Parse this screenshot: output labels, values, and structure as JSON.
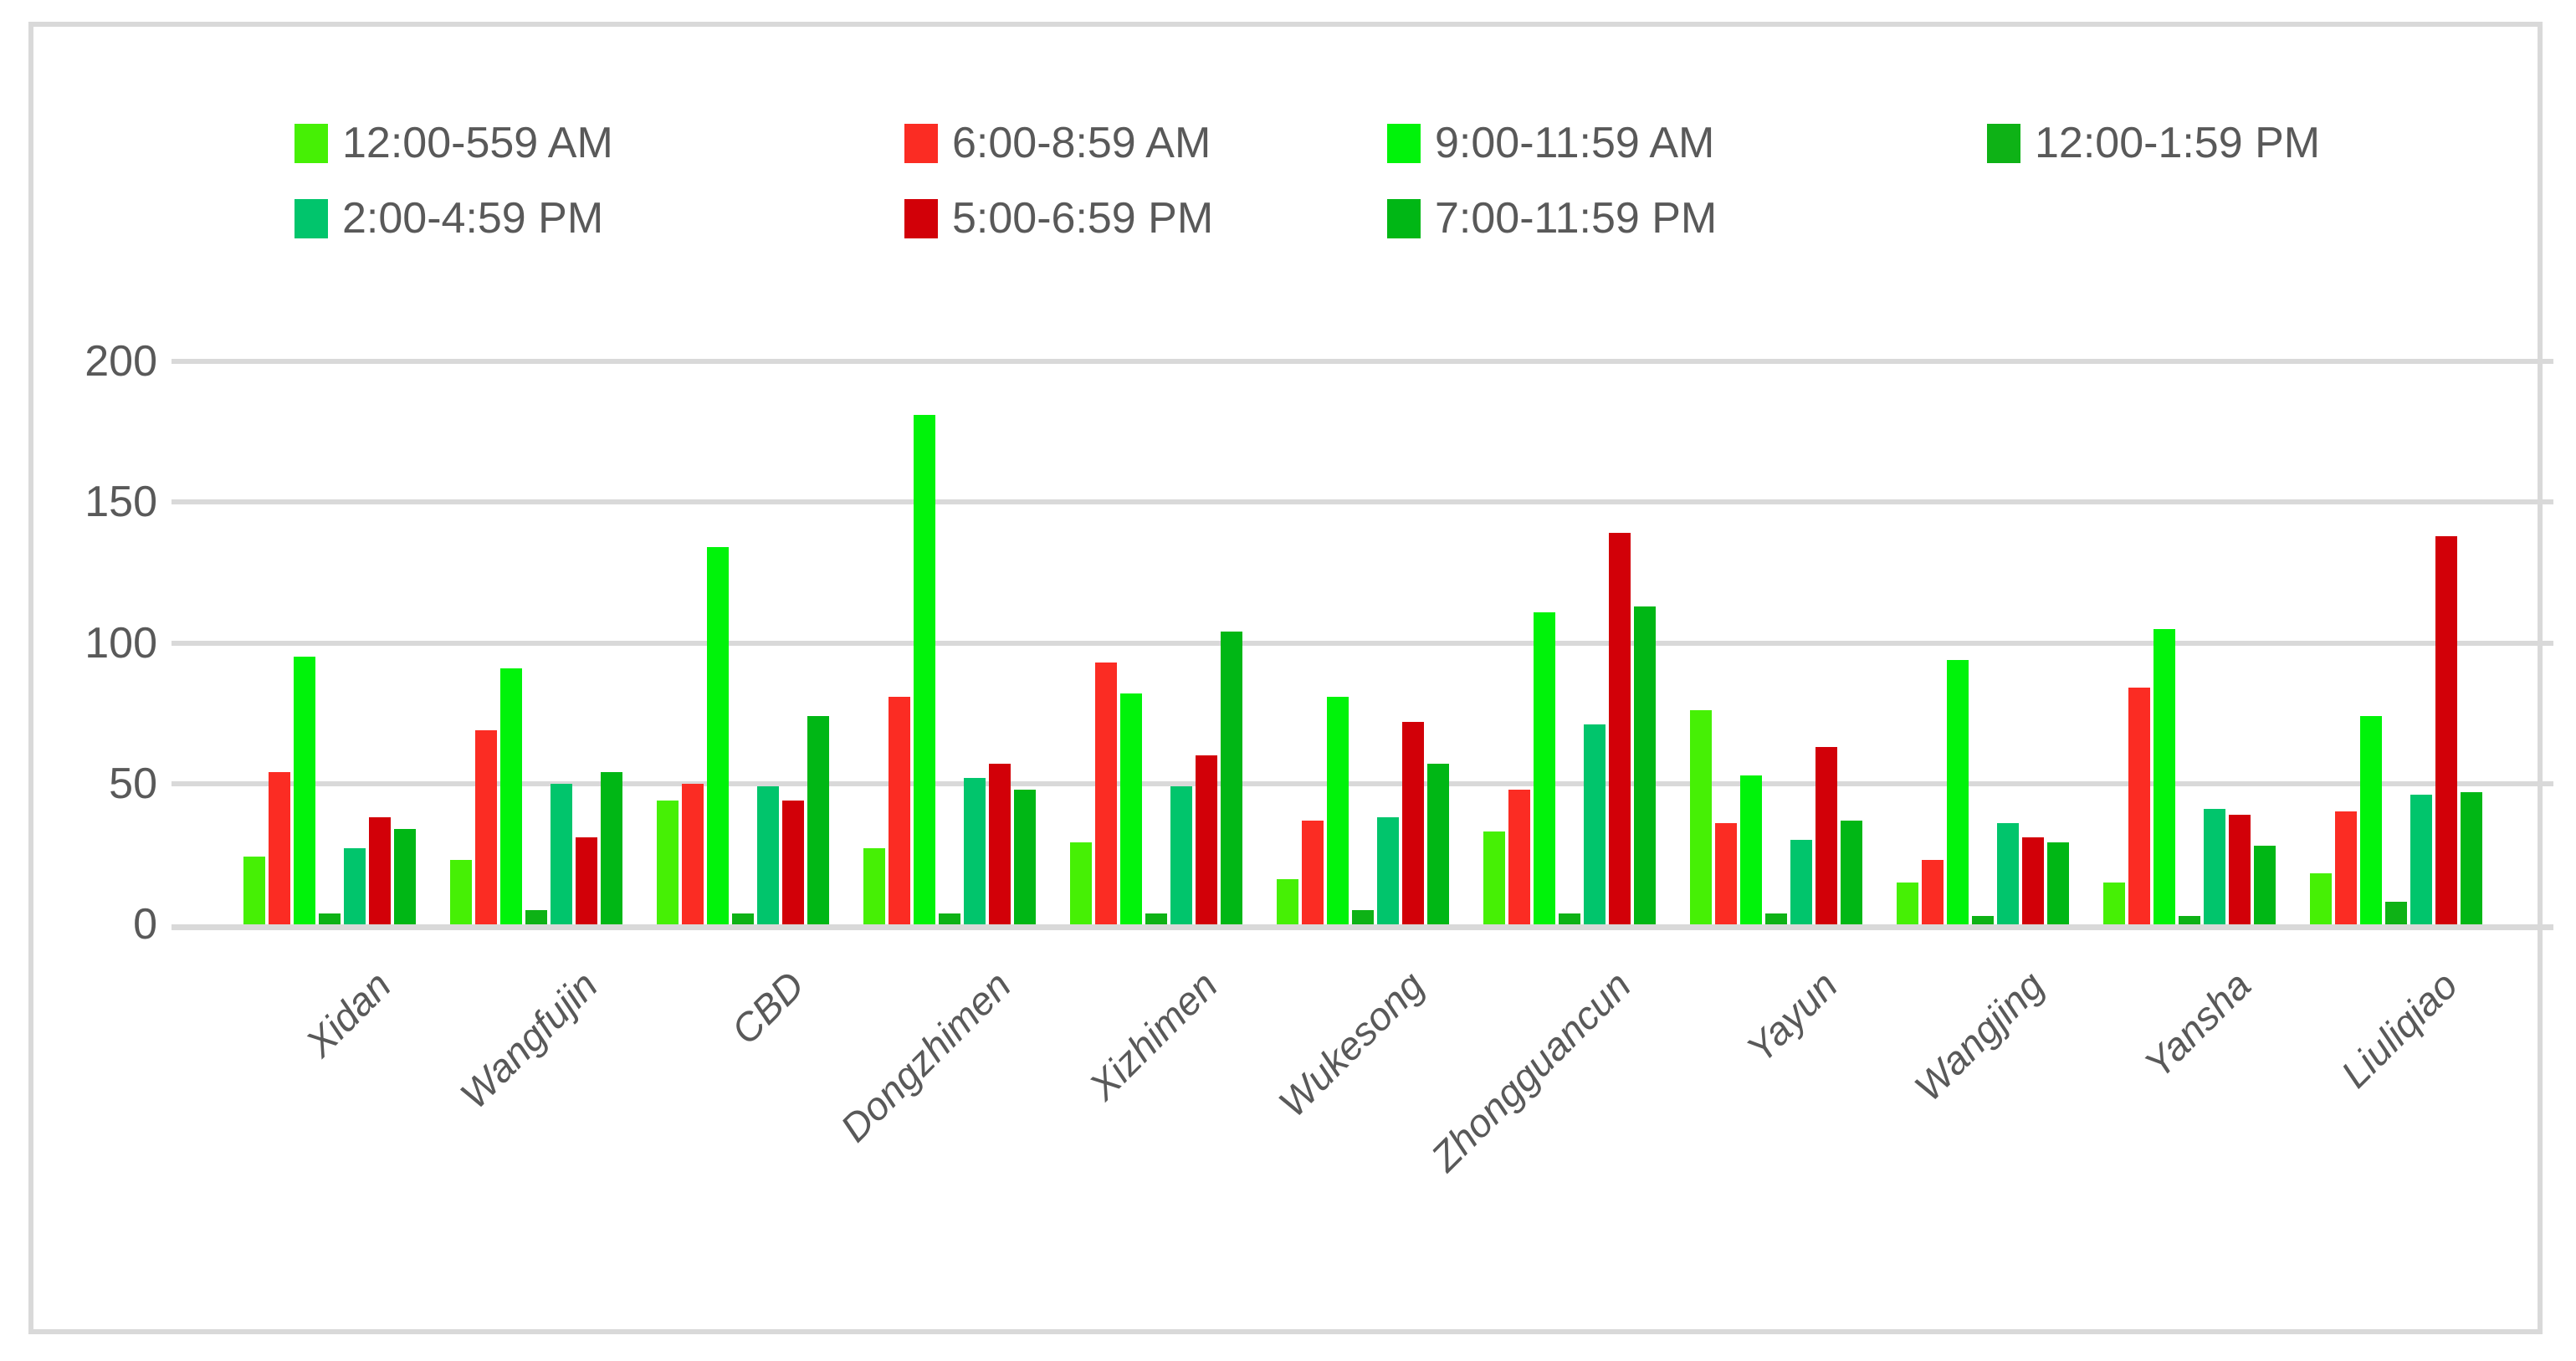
{
  "chart": {
    "background": "#FFFFFF",
    "border_color": "#D9D9D9",
    "gridline_color": "#D9D9D9",
    "axis_text_color": "#595959",
    "legend_text_color": "#595959"
  },
  "chart_data": {
    "type": "bar",
    "title": "",
    "xlabel": "",
    "ylabel": "",
    "ylim": [
      0,
      200
    ],
    "yticks": [
      0,
      50,
      100,
      150,
      200
    ],
    "grid": true,
    "legend_position": "top",
    "categories": [
      "Xidan",
      "Wangfujin",
      "CBD",
      "Dongzhimen",
      "Xizhimen",
      "Wukesong",
      "Zhongguancun",
      "Yayun",
      "Wangjing",
      "Yansha",
      "Liuliqiao"
    ],
    "series": [
      {
        "name": "12:00-559 AM",
        "color": "#46F005",
        "values": [
          24,
          23,
          44,
          27,
          29,
          16,
          33,
          76,
          15,
          15,
          18
        ]
      },
      {
        "name": "6:00-8:59 AM",
        "color": "#FB2C23",
        "values": [
          54,
          69,
          50,
          81,
          93,
          37,
          48,
          36,
          23,
          84,
          40
        ]
      },
      {
        "name": "9:00-11:59 AM",
        "color": "#00F30A",
        "values": [
          95,
          91,
          134,
          181,
          82,
          81,
          111,
          53,
          94,
          105,
          74
        ]
      },
      {
        "name": "12:00-1:59 PM",
        "color": "#0EB216",
        "values": [
          4,
          5,
          4,
          4,
          4,
          5,
          4,
          4,
          3,
          3,
          8
        ]
      },
      {
        "name": "2:00-4:59 PM",
        "color": "#01C56C",
        "values": [
          27,
          50,
          49,
          52,
          49,
          38,
          71,
          30,
          36,
          41,
          46
        ]
      },
      {
        "name": "5:00-6:59 PM",
        "color": "#D20008",
        "values": [
          38,
          31,
          44,
          57,
          60,
          72,
          139,
          63,
          31,
          39,
          138
        ]
      },
      {
        "name": "7:00-11:59 PM",
        "color": "#00B715",
        "values": [
          34,
          54,
          74,
          48,
          104,
          57,
          113,
          37,
          29,
          28,
          47
        ]
      }
    ]
  }
}
